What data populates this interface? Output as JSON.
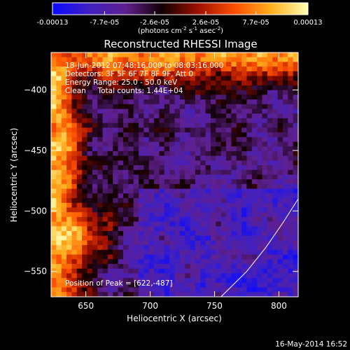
{
  "chart_data": {
    "type": "heatmap",
    "title": "Reconstructed RHESSI Image",
    "xlabel": "Heliocentric X (arcsec)",
    "ylabel": "Heliocentric Y (arcsec)",
    "x_ticks": [
      "650",
      "700",
      "750",
      "800"
    ],
    "y_ticks": [
      "-400",
      "-450",
      "-500",
      "-550"
    ],
    "xlim": [
      623,
      815
    ],
    "ylim": [
      -571,
      -369
    ],
    "grid": false,
    "colorbar": {
      "ticks": [
        "-0.00013",
        "-7.7e-05",
        "-2.6e-05",
        "2.6e-05",
        "7.7e-05",
        "0.00013"
      ],
      "unit_label": "(photons cm",
      "unit_sup1": "-2",
      "unit_mid": " s",
      "unit_sup2": "-1",
      "unit_end": " asec",
      "unit_sup3": "-2",
      "unit_close": ")",
      "range": [
        -0.00013,
        0.00013
      ],
      "colors": [
        "#0a0aff",
        "#4020c0",
        "#602090",
        "#100000",
        "#a01000",
        "#ff5000",
        "#ffb020",
        "#ffffb0"
      ]
    },
    "annotations": {
      "time_range": "18-Jun-2012 07:48:16.000 to 08:03:16.000",
      "detectors": "Detectors: 3F 5F 6F 7F 8F 9F, Att 0",
      "energy": "Energy Range: 25.0 - 50.0 keV",
      "clean": "Clean     Total counts: 1.44E+04",
      "peak": "Position of Peak = [622,-487]"
    },
    "limb_arc": [
      [
        755,
        -571
      ],
      [
        775,
        -550
      ],
      [
        790,
        -530
      ],
      [
        803,
        -510
      ],
      [
        815,
        -490
      ]
    ],
    "grid_resolution": [
      48,
      52
    ]
  },
  "footer": {
    "date": "16-May-2014 16:52"
  }
}
